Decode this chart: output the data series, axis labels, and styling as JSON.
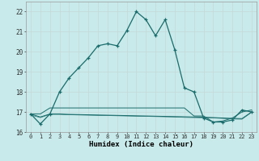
{
  "xlabel": "Humidex (Indice chaleur)",
  "ylabel": "",
  "background_color": "#c8eaea",
  "grid_color": "#c4d8d8",
  "line_color": "#1a6b6b",
  "hours": [
    0,
    1,
    2,
    3,
    4,
    5,
    6,
    7,
    8,
    9,
    10,
    11,
    12,
    13,
    14,
    15,
    16,
    17,
    18,
    19,
    20,
    21,
    22,
    23
  ],
  "main_series": [
    16.9,
    16.4,
    16.9,
    18.0,
    18.7,
    19.2,
    19.7,
    20.3,
    20.4,
    20.3,
    21.05,
    22.0,
    21.6,
    20.8,
    21.6,
    20.1,
    18.2,
    18.0,
    16.7,
    16.5,
    16.5,
    16.6,
    17.1,
    17.0
  ],
  "flat_series1": [
    16.9,
    16.9,
    17.2,
    17.2,
    17.2,
    17.2,
    17.2,
    17.2,
    17.2,
    17.2,
    17.2,
    17.2,
    17.2,
    17.2,
    17.2,
    17.2,
    17.2,
    16.8,
    16.8,
    16.5,
    16.55,
    16.7,
    17.0,
    17.1
  ],
  "flat_series2": [
    16.9,
    16.75,
    16.9,
    16.9,
    16.88,
    16.87,
    16.86,
    16.85,
    16.84,
    16.83,
    16.82,
    16.81,
    16.8,
    16.79,
    16.78,
    16.77,
    16.76,
    16.75,
    16.74,
    16.72,
    16.7,
    16.68,
    16.67,
    17.0
  ],
  "flat_series3": [
    16.85,
    16.72,
    16.88,
    16.88,
    16.86,
    16.85,
    16.84,
    16.83,
    16.82,
    16.81,
    16.8,
    16.79,
    16.78,
    16.77,
    16.76,
    16.75,
    16.73,
    16.72,
    16.71,
    16.7,
    16.68,
    16.65,
    16.64,
    16.98
  ],
  "ylim": [
    16.0,
    22.5
  ],
  "yticks": [
    16,
    17,
    18,
    19,
    20,
    21,
    22
  ],
  "xticks": [
    0,
    1,
    2,
    3,
    4,
    5,
    6,
    7,
    8,
    9,
    10,
    11,
    12,
    13,
    14,
    15,
    16,
    17,
    18,
    19,
    20,
    21,
    22,
    23
  ]
}
